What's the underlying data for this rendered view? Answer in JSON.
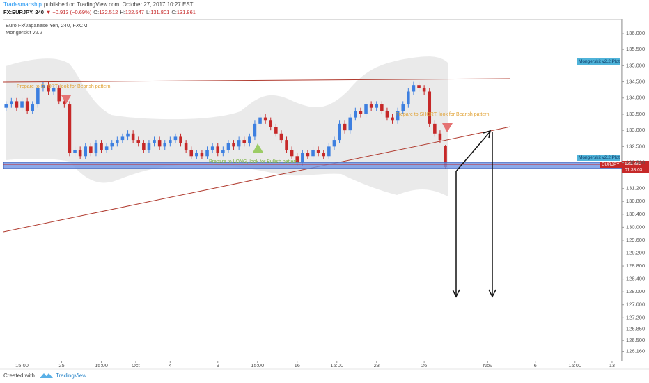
{
  "header": {
    "author": "Tradesmanship",
    "published": "published on TradingView.com, October 27, 2017 10:27 EST",
    "symbol": "FX:EURJPY, 240",
    "arrow": "▼",
    "change": "−0.913 (−0.69%)",
    "o": "O:",
    "h": "H:",
    "l": "L:",
    "c": "C:"
  },
  "footer": {
    "created": "Created with",
    "brand": "TradingView"
  },
  "chart_data": {
    "type": "candlestick",
    "title": "Euro Fx/Japanese Yen, 240, FXCM",
    "subtitle": "Mongerskit v2.2",
    "annotations": [
      "Prepare to SHORT, look for Bearish pattern.",
      "Prepare to SHORT, look for Bearish pattern.",
      "Prepare to LONG, look for Bullish pattern."
    ],
    "tags": {
      "plot": "Mongerskit v2.2:Plot",
      "symbol": "EURJPY",
      "countdown": "01:33:03"
    },
    "up_color": "#3d7fe0",
    "down_color": "#c62828",
    "x": [
      1,
      3,
      5,
      7,
      9,
      11,
      13,
      15,
      17,
      19,
      21,
      23,
      25,
      27,
      29,
      31,
      33,
      35,
      37,
      39,
      41,
      43,
      45,
      47,
      49,
      51,
      53,
      55,
      57,
      59,
      61,
      63,
      65,
      67,
      69,
      71,
      73,
      75,
      77,
      79,
      81,
      83,
      85,
      87,
      89,
      91,
      93,
      95,
      97,
      99,
      101,
      103,
      105,
      107,
      109,
      111,
      113,
      115,
      117,
      119,
      121,
      123,
      125,
      127,
      129,
      131,
      133,
      135,
      137,
      139,
      141,
      143,
      145,
      147,
      149,
      151,
      153,
      155,
      157,
      159,
      161,
      163,
      165,
      167
    ],
    "open": [
      133.7,
      133.8,
      133.9,
      133.7,
      133.9,
      133.6,
      133.8,
      134.3,
      134.4,
      134.2,
      134.3,
      133.9,
      133.8,
      132.3,
      132.4,
      132.2,
      132.5,
      132.3,
      132.6,
      132.4,
      132.5,
      132.6,
      132.7,
      132.8,
      132.9,
      132.7,
      132.6,
      132.4,
      132.6,
      132.7,
      132.5,
      132.6,
      132.7,
      132.8,
      132.6,
      132.4,
      132.2,
      132.3,
      132.2,
      132.4,
      132.5,
      132.3,
      132.4,
      132.6,
      132.5,
      132.7,
      132.6,
      132.8,
      133.2,
      133.4,
      133.3,
      133.1,
      132.9,
      132.7,
      132.4,
      132.2,
      132.0,
      132.3,
      132.2,
      132.4,
      132.3,
      132.2,
      132.5,
      132.7,
      133.2,
      133.0,
      133.4,
      133.6,
      133.5,
      133.8,
      133.7,
      133.8,
      133.6,
      133.4,
      133.3,
      133.6,
      133.8,
      134.2,
      134.4,
      134.3,
      134.2,
      133.2,
      132.9,
      132.512
    ],
    "high": [
      133.9,
      134.0,
      134.0,
      134.0,
      134.0,
      133.9,
      134.4,
      134.5,
      134.5,
      134.4,
      134.4,
      134.0,
      133.9,
      132.5,
      132.5,
      132.6,
      132.6,
      132.7,
      132.7,
      132.6,
      132.7,
      132.8,
      132.9,
      133.0,
      133.0,
      132.8,
      132.7,
      132.7,
      132.8,
      132.8,
      132.7,
      132.8,
      132.9,
      132.9,
      132.7,
      132.5,
      132.4,
      132.4,
      132.5,
      132.6,
      132.6,
      132.5,
      132.7,
      132.7,
      132.8,
      132.8,
      132.9,
      133.3,
      133.5,
      133.5,
      133.4,
      133.2,
      133.0,
      132.8,
      132.5,
      132.3,
      132.4,
      132.4,
      132.5,
      132.5,
      132.4,
      132.6,
      132.8,
      133.3,
      133.3,
      133.5,
      133.7,
      133.7,
      133.9,
      133.9,
      133.9,
      133.9,
      133.7,
      133.5,
      133.7,
      133.9,
      134.3,
      134.5,
      134.5,
      134.4,
      134.3,
      133.3,
      133.0,
      132.547
    ],
    "low": [
      133.6,
      133.7,
      133.6,
      133.6,
      133.5,
      133.5,
      133.7,
      134.2,
      134.1,
      134.1,
      133.8,
      133.7,
      132.2,
      132.2,
      132.1,
      132.1,
      132.2,
      132.2,
      132.3,
      132.3,
      132.4,
      132.5,
      132.6,
      132.7,
      132.6,
      132.5,
      132.3,
      132.3,
      132.5,
      132.4,
      132.4,
      132.5,
      132.6,
      132.5,
      132.3,
      132.1,
      132.1,
      132.1,
      132.1,
      132.3,
      132.2,
      132.2,
      132.3,
      132.4,
      132.4,
      132.5,
      132.5,
      132.7,
      133.1,
      133.2,
      133.0,
      132.8,
      132.6,
      132.3,
      132.1,
      131.9,
      131.9,
      132.1,
      132.1,
      132.2,
      132.1,
      132.1,
      132.4,
      132.6,
      132.9,
      132.9,
      133.3,
      133.4,
      133.4,
      133.6,
      133.6,
      133.5,
      133.3,
      133.2,
      133.2,
      133.5,
      133.7,
      134.1,
      134.2,
      134.1,
      133.1,
      132.8,
      132.6,
      131.801
    ],
    "close": [
      133.8,
      133.9,
      133.7,
      133.9,
      133.6,
      133.8,
      134.3,
      134.4,
      134.2,
      134.3,
      133.9,
      133.8,
      132.3,
      132.4,
      132.2,
      132.5,
      132.3,
      132.6,
      132.4,
      132.5,
      132.6,
      132.7,
      132.8,
      132.9,
      132.7,
      132.6,
      132.4,
      132.6,
      132.7,
      132.5,
      132.6,
      132.7,
      132.8,
      132.6,
      132.4,
      132.2,
      132.3,
      132.2,
      132.4,
      132.5,
      132.3,
      132.4,
      132.6,
      132.5,
      132.7,
      132.6,
      132.8,
      133.2,
      133.4,
      133.3,
      133.1,
      132.9,
      132.7,
      132.4,
      132.2,
      132.0,
      132.3,
      132.2,
      132.4,
      132.3,
      132.2,
      132.5,
      132.7,
      133.2,
      133.0,
      133.4,
      133.6,
      133.5,
      133.8,
      133.7,
      133.8,
      133.6,
      133.4,
      133.3,
      133.6,
      133.8,
      134.2,
      134.4,
      134.3,
      134.2,
      133.2,
      132.9,
      132.7,
      131.861
    ],
    "xlim": [
      -1.3,
      233.7
    ],
    "ylim": [
      125.87,
      136.43
    ],
    "xticks": [
      {
        "value": 7,
        "label": "15:00"
      },
      {
        "value": 22,
        "label": "25"
      },
      {
        "value": 37,
        "label": "15:00"
      },
      {
        "value": 50,
        "label": "Oct"
      },
      {
        "value": 63,
        "label": "4"
      },
      {
        "value": 81,
        "label": "9"
      },
      {
        "value": 96,
        "label": "15:00"
      },
      {
        "value": 111,
        "label": "16"
      },
      {
        "value": 126,
        "label": "15:00"
      },
      {
        "value": 141,
        "label": "23"
      },
      {
        "value": 159,
        "label": "26"
      },
      {
        "value": 183,
        "label": "Nov"
      },
      {
        "value": 201,
        "label": "6"
      },
      {
        "value": 216,
        "label": "15:00"
      },
      {
        "value": 230,
        "label": "13"
      }
    ],
    "yticks": [
      {
        "value": 136,
        "label": "136.000"
      },
      {
        "value": 135.5,
        "label": "135.500"
      },
      {
        "value": 135,
        "label": "135.000"
      },
      {
        "value": 134.5,
        "label": "134.500"
      },
      {
        "value": 134,
        "label": "134.000"
      },
      {
        "value": 133.5,
        "label": "133.500"
      },
      {
        "value": 133,
        "label": "133.000"
      },
      {
        "value": 132.5,
        "label": "132.500"
      },
      {
        "value": 132,
        "label": "132.000"
      },
      {
        "value": 131.2,
        "label": "131.200"
      },
      {
        "value": 130.8,
        "label": "130.800"
      },
      {
        "value": 130.4,
        "label": "130.400"
      },
      {
        "value": 130,
        "label": "130.000"
      },
      {
        "value": 129.6,
        "label": "129.600"
      },
      {
        "value": 129.2,
        "label": "129.200"
      },
      {
        "value": 128.8,
        "label": "128.800"
      },
      {
        "value": 128.4,
        "label": "128.400"
      },
      {
        "value": 128,
        "label": "128.000"
      },
      {
        "value": 127.6,
        "label": "127.600"
      },
      {
        "value": 127.2,
        "label": "127.200"
      },
      {
        "value": 126.85,
        "label": "126.850"
      },
      {
        "value": 126.5,
        "label": "126.500"
      },
      {
        "value": 126.16,
        "label": "126.160"
      }
    ],
    "grid": false
  }
}
